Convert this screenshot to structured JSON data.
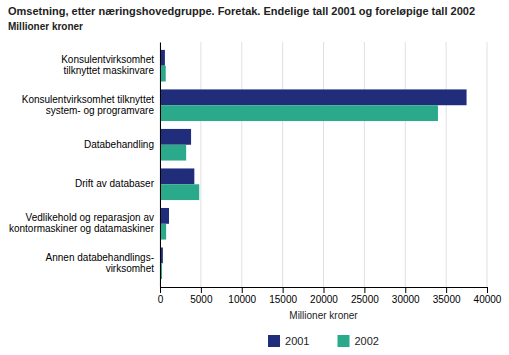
{
  "chart_data": {
    "type": "bar",
    "orientation": "horizontal",
    "title": "Omsetning, etter næringshovedgruppe. Foretak. Endelige tall 2001 og foreløpige tall 2002",
    "subtitle": "Millioner kroner",
    "xlabel": "Millioner kroner",
    "categories": [
      "Konsulentvirksomhet\ntilknyttet maskinvare",
      "Konsulentvirksomhet tilknyttet\nsystem- og programvare",
      "Databehandling",
      "Drift av databaser",
      "Vedlikehold og reparasjon av\nkontormaskiner og datamaskiner",
      "Annen databehandlings-\nvirksomhet"
    ],
    "series": [
      {
        "name": "2001",
        "color": "#1f2d7b",
        "values": [
          600,
          37500,
          3800,
          4200,
          1100,
          350
        ]
      },
      {
        "name": "2002",
        "color": "#2aaa8a",
        "values": [
          700,
          34000,
          3200,
          4800,
          750,
          250
        ]
      }
    ],
    "xlim": [
      0,
      40000
    ],
    "xticks": [
      0,
      5000,
      10000,
      15000,
      20000,
      25000,
      30000,
      35000,
      40000
    ],
    "grid": true,
    "legend": "bottom"
  }
}
